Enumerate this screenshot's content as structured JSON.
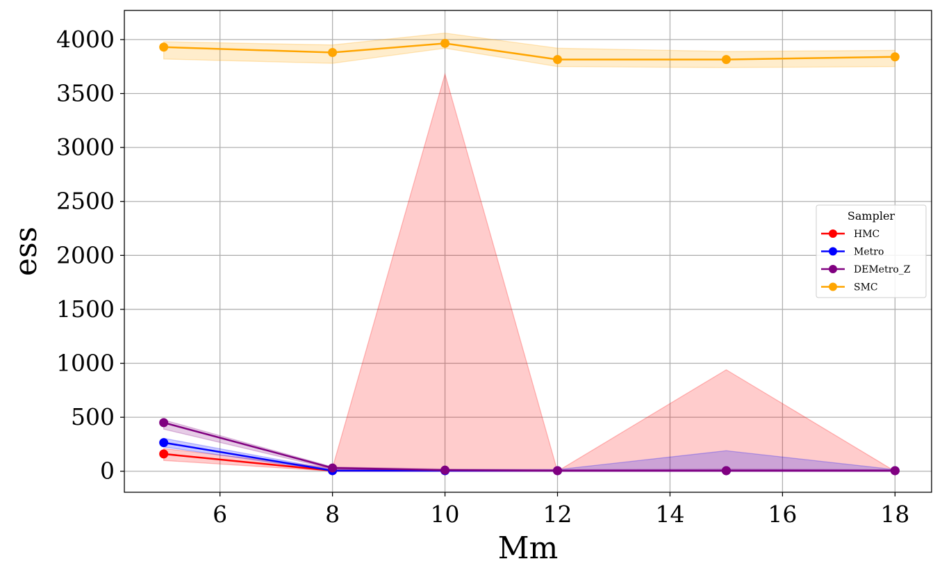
{
  "chart_data": {
    "type": "line",
    "xlabel": "Mm",
    "ylabel": "ess",
    "x": [
      5,
      8,
      10,
      12,
      15,
      18
    ],
    "xlim": [
      4.3,
      18.65
    ],
    "ylim": [
      -195,
      4270
    ],
    "xticks": [
      6,
      8,
      10,
      12,
      14,
      16,
      18
    ],
    "yticks": [
      0,
      500,
      1000,
      1500,
      2000,
      2500,
      3000,
      3500,
      4000
    ],
    "grid": true,
    "legend": {
      "title": "Sampler",
      "placement": "center-right"
    },
    "series": [
      {
        "name": "HMC",
        "color": "#ff0000",
        "values": [
          160,
          5,
          5,
          5,
          5,
          5
        ],
        "band_lower": [
          100,
          0,
          0,
          0,
          0,
          0
        ],
        "band_upper": [
          210,
          30,
          3680,
          0,
          940,
          0
        ]
      },
      {
        "name": "Metro",
        "color": "#0000ff",
        "values": [
          265,
          5,
          5,
          5,
          5,
          5
        ],
        "band_lower": [
          225,
          0,
          0,
          0,
          0,
          0
        ],
        "band_upper": [
          305,
          15,
          15,
          15,
          190,
          15
        ]
      },
      {
        "name": "DEMetro_Z",
        "color": "#800080",
        "values": [
          450,
          30,
          10,
          5,
          5,
          5
        ],
        "band_lower": [
          390,
          20,
          0,
          0,
          0,
          0
        ],
        "band_upper": [
          475,
          40,
          20,
          15,
          20,
          15
        ]
      },
      {
        "name": "SMC",
        "color": "#ffa500",
        "values": [
          3930,
          3880,
          3965,
          3815,
          3815,
          3840
        ],
        "band_lower": [
          3820,
          3780,
          3920,
          3750,
          3740,
          3750
        ],
        "band_upper": [
          3980,
          3950,
          4060,
          3920,
          3890,
          3900
        ]
      }
    ]
  }
}
